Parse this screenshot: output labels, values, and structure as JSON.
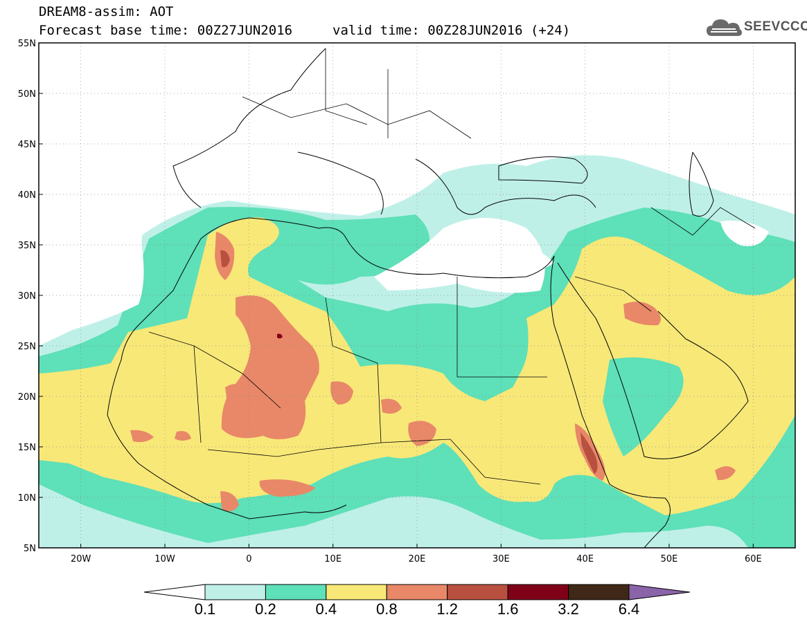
{
  "title": {
    "line1": "DREAM8-assim: AOT",
    "line2": "Forecast base time: 00Z27JUN2016",
    "valid": "valid time: 00Z28JUN2016 (+24)"
  },
  "logo": {
    "text": "SEEVCCC",
    "icon": "cloud-icon"
  },
  "map": {
    "lon_range": [
      -25,
      65
    ],
    "lat_range": [
      5,
      55
    ],
    "lat_ticks": [
      {
        "value": 55,
        "label": "55N"
      },
      {
        "value": 50,
        "label": "50N"
      },
      {
        "value": 45,
        "label": "45N"
      },
      {
        "value": 40,
        "label": "40N"
      },
      {
        "value": 35,
        "label": "35N"
      },
      {
        "value": 30,
        "label": "30N"
      },
      {
        "value": 25,
        "label": "25N"
      },
      {
        "value": 20,
        "label": "20N"
      },
      {
        "value": 15,
        "label": "15N"
      },
      {
        "value": 10,
        "label": "10N"
      },
      {
        "value": 5,
        "label": "5N"
      }
    ],
    "lon_ticks": [
      {
        "value": -20,
        "label": "20W"
      },
      {
        "value": -10,
        "label": "10W"
      },
      {
        "value": 0,
        "label": "0"
      },
      {
        "value": 10,
        "label": "10E"
      },
      {
        "value": 20,
        "label": "20E"
      },
      {
        "value": 30,
        "label": "30E"
      },
      {
        "value": 40,
        "label": "40E"
      },
      {
        "value": 50,
        "label": "50E"
      },
      {
        "value": 60,
        "label": "60E"
      }
    ],
    "grid": true
  },
  "colorbar": {
    "under_color": "#ffffff",
    "over_color": "#8a64a8",
    "bins": [
      {
        "color": "#bff0e8"
      },
      {
        "color": "#5ee0b8"
      },
      {
        "color": "#f8e878"
      },
      {
        "color": "#e88868"
      },
      {
        "color": "#b85040"
      },
      {
        "color": "#800018"
      },
      {
        "color": "#402818"
      }
    ],
    "labels": [
      "0.1",
      "0.2",
      "0.4",
      "0.8",
      "1.2",
      "1.6",
      "3.2",
      "6.4"
    ]
  },
  "palette": {
    "c01": "#bff0e8",
    "c02": "#5ee0b8",
    "c04": "#f8e878",
    "c08": "#e88868",
    "c12": "#b85040",
    "c16": "#800018"
  }
}
